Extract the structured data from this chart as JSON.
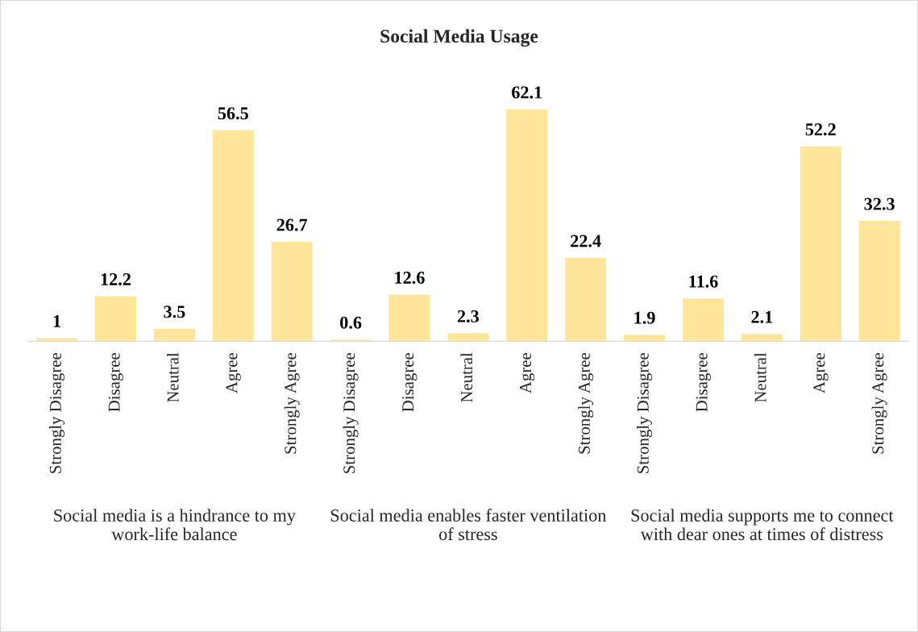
{
  "chart_data": {
    "type": "bar",
    "title": "Social Media Usage",
    "categories": [
      "Strongly Disagree",
      "Disagree",
      "Neutral",
      "Agree",
      "Strongly Agree",
      "Strongly Disagree",
      "Disagree",
      "Neutral",
      "Agree",
      "Strongly Agree",
      "Strongly Disagree",
      "Disagree",
      "Neutral",
      "Agree",
      "Strongly Agree"
    ],
    "values": [
      1,
      12.2,
      3.5,
      56.5,
      26.7,
      0.6,
      12.6,
      2.3,
      62.1,
      22.4,
      1.9,
      11.6,
      2.1,
      52.2,
      32.3
    ],
    "color": "#ffe699",
    "data_labels": true,
    "tick_labels": "x",
    "grid": false,
    "legend": false,
    "annotations": [
      "Social media is a hindrance to my work-life balance",
      "Social media enables faster ventilation of stress",
      "Social media supports me to connect with dear ones at times of distress"
    ]
  }
}
